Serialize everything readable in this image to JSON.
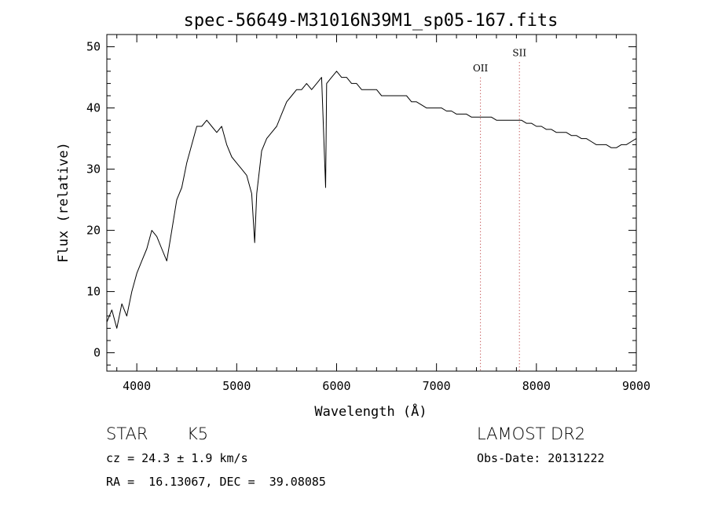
{
  "chart_data": {
    "type": "line",
    "title": "spec-56649-M31016N39M1_sp05-167.fits",
    "xlabel": "Wavelength (Å)",
    "ylabel": "Flux (relative)",
    "xlim": [
      3700,
      9000
    ],
    "ylim": [
      -3,
      52
    ],
    "xticks": [
      4000,
      5000,
      6000,
      7000,
      8000,
      9000
    ],
    "yticks": [
      0,
      10,
      20,
      30,
      40,
      50
    ],
    "grid": false,
    "series": [
      {
        "x": [
          3700,
          3750,
          3800,
          3850,
          3900,
          3950,
          4000,
          4050,
          4100,
          4150,
          4200,
          4250,
          4300,
          4350,
          4400,
          4450,
          4500,
          4550,
          4600,
          4650,
          4700,
          4750,
          4800,
          4850,
          4900,
          4950,
          5000,
          5050,
          5100,
          5150,
          5180,
          5200,
          5250,
          5300,
          5350,
          5400,
          5450,
          5500,
          5550,
          5600,
          5650,
          5700,
          5750,
          5800,
          5850,
          5890,
          5900,
          5950,
          6000,
          6050,
          6100,
          6150,
          6200,
          6250,
          6300,
          6350,
          6400,
          6450,
          6500,
          6550,
          6600,
          6650,
          6700,
          6750,
          6800,
          6850,
          6900,
          6950,
          7000,
          7050,
          7100,
          7150,
          7200,
          7250,
          7300,
          7350,
          7400,
          7450,
          7500,
          7550,
          7600,
          7650,
          7700,
          7750,
          7800,
          7850,
          7900,
          7950,
          8000,
          8050,
          8100,
          8150,
          8200,
          8250,
          8300,
          8350,
          8400,
          8450,
          8500,
          8550,
          8600,
          8650,
          8700,
          8750,
          8800,
          8850,
          8900,
          8950,
          9000
        ],
        "y": [
          5,
          7,
          4,
          8,
          6,
          10,
          13,
          15,
          17,
          20,
          19,
          17,
          15,
          20,
          25,
          27,
          31,
          34,
          37,
          37,
          38,
          37,
          36,
          37,
          34,
          32,
          31,
          30,
          29,
          26,
          18,
          26,
          33,
          35,
          36,
          37,
          39,
          41,
          42,
          43,
          43,
          44,
          43,
          44,
          45,
          27,
          44,
          45,
          46,
          45,
          45,
          44,
          44,
          43,
          43,
          43,
          43,
          42,
          42,
          42,
          42,
          42,
          42,
          41,
          41,
          40.5,
          40,
          40,
          40,
          40,
          39.5,
          39.5,
          39,
          39,
          39,
          38.5,
          38.5,
          38.5,
          38.5,
          38.5,
          38,
          38,
          38,
          38,
          38,
          38,
          37.5,
          37.5,
          37,
          37,
          36.5,
          36.5,
          36,
          36,
          36,
          35.5,
          35.5,
          35,
          35,
          34.5,
          34,
          34,
          34,
          33.5,
          33.5,
          34,
          34,
          34.5,
          35
        ]
      }
    ],
    "annotations": [
      {
        "label": "OII",
        "x": 7440,
        "label_y": 46
      },
      {
        "label": "SII",
        "x": 7830,
        "label_y": 48.5
      }
    ]
  },
  "info": {
    "class_label": "STAR",
    "subclass_label": "K5",
    "survey": "LAMOST DR2",
    "redshift_line": "cz = 24.3 ± 1.9 km/s",
    "obs_date_line": "Obs-Date: 20131222",
    "coord_line": "RA =  16.13067, DEC =  39.08085"
  }
}
